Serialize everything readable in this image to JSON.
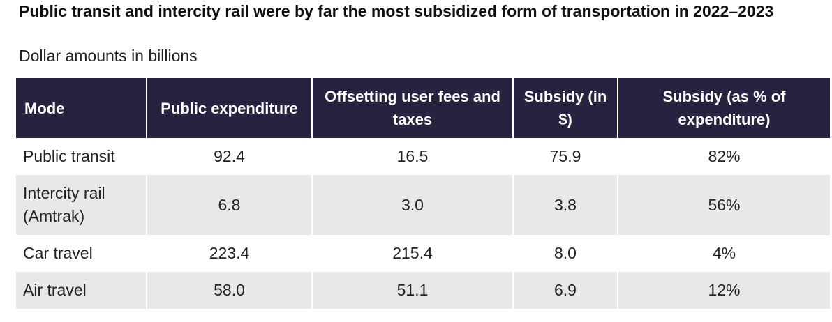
{
  "chart_data": {
    "type": "table",
    "title": "Public transit and intercity rail were by far the most subsidized form of transportation in 2022–2023",
    "subtitle": "Dollar amounts in billions",
    "columns": [
      "Mode",
      "Public expenditure",
      "Offsetting user fees and taxes",
      "Subsidy (in $)",
      "Subsidy (as % of expenditure)"
    ],
    "rows": [
      [
        "Public transit",
        "92.4",
        "16.5",
        "75.9",
        "82%"
      ],
      [
        "Intercity rail (Amtrak)",
        "6.8",
        "3.0",
        "3.8",
        "56%"
      ],
      [
        "Car travel",
        "223.4",
        "215.4",
        "8.0",
        "4%"
      ],
      [
        "Air travel",
        "58.0",
        "51.1",
        "6.9",
        "12%"
      ]
    ]
  },
  "colors": {
    "header_background": "#252340",
    "header_text": "#ffffff",
    "stripe_background": "#e8e8e8"
  }
}
